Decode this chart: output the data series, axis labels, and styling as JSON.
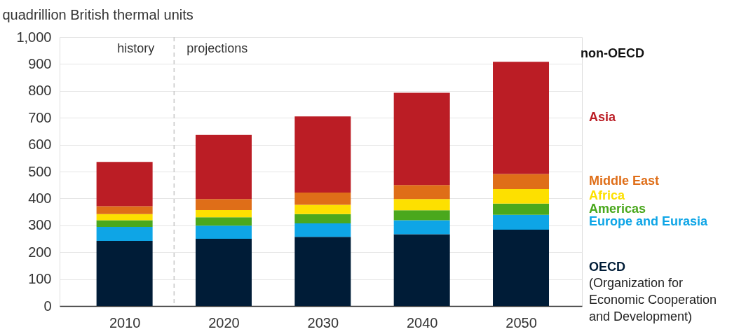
{
  "chart_data": {
    "type": "bar",
    "stacked": true,
    "ylabel": "quadrillion British thermal units",
    "x": [
      2010,
      2020,
      2030,
      2040,
      2050
    ],
    "xlim": [
      2003.8,
      2055.8
    ],
    "xticks": [
      2010,
      2020,
      2030,
      2040,
      2050
    ],
    "ylim": [
      0,
      1000
    ],
    "yticks": [
      0,
      100,
      200,
      300,
      400,
      500,
      600,
      700,
      800,
      900,
      {
        "value": 1000,
        "label": "1,000"
      }
    ],
    "grid": "y",
    "legend": "right",
    "series": [
      {
        "name": "OECD",
        "color": "#001c37",
        "values": [
          242,
          250,
          257,
          267,
          284
        ]
      },
      {
        "name": "Europe and Eurasia",
        "color": "#0ea5e6",
        "values": [
          52,
          49,
          50,
          52,
          55
        ]
      },
      {
        "name": "Americas",
        "color": "#4aa81d",
        "values": [
          25,
          31,
          35,
          37,
          42
        ]
      },
      {
        "name": "Africa",
        "color": "#fde000",
        "values": [
          23,
          27,
          34,
          42,
          54
        ]
      },
      {
        "name": "Middle East",
        "color": "#df6e18",
        "values": [
          29,
          41,
          46,
          52,
          56
        ]
      },
      {
        "name": "Asia",
        "color": "#bb1d25",
        "values": [
          165,
          238,
          283,
          343,
          417
        ]
      }
    ],
    "ref_lines": [
      {
        "axis": "x",
        "value": 2015,
        "color": "#c8c8c8",
        "line_style": "dashed"
      }
    ],
    "annotations": [
      "history",
      "projections",
      "non-OECD",
      "(Organization for Economic Cooperation and Development)"
    ]
  }
}
